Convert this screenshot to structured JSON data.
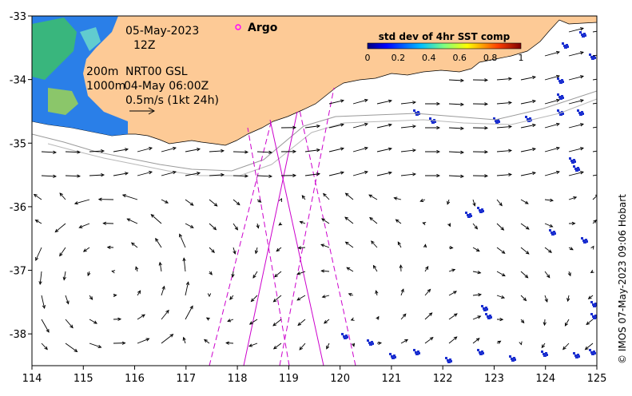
{
  "map": {
    "lon_ticks": [
      "114",
      "115",
      "116",
      "117",
      "118",
      "119",
      "120",
      "121",
      "122",
      "123",
      "124",
      "125"
    ],
    "lat_ticks": [
      "-33",
      "-34",
      "-35",
      "-36",
      "-37",
      "-38"
    ],
    "lon_range": [
      114,
      125
    ],
    "lat_range": [
      -38.5,
      -33
    ]
  },
  "annotations": {
    "date": "05-May-2023",
    "hour": "12Z",
    "isobath_200": "200m",
    "isobath_1000": "1000m",
    "product": "NRT00 GSL",
    "product_time": "04-May 06:00Z",
    "scale_label": "0.5m/s (1kt 24h)",
    "argo_label": "Argo",
    "credit": "© IMOS 07-May-2023 09:06 Hobart"
  },
  "colorbar": {
    "title": "std dev of 4hr SST comp",
    "ticks": [
      "0",
      "0.2",
      "0.4",
      "0.6",
      "0.8",
      "1"
    ],
    "colors": [
      "#00007f",
      "#0000ff",
      "#007fff",
      "#00ffff",
      "#7fff7f",
      "#ffff00",
      "#ff7f00",
      "#ff0000",
      "#7f0000"
    ]
  },
  "colors": {
    "land": "#fdca96",
    "shelf_sst": "#2a7fe8",
    "argo": "#ff00ff",
    "track": "#cc00cc",
    "isobath": "#9a9a9a",
    "arrow": "#000000"
  },
  "icons": {
    "argo_marker": "circle-marker-icon",
    "scale_arrow": "arrow-icon"
  }
}
